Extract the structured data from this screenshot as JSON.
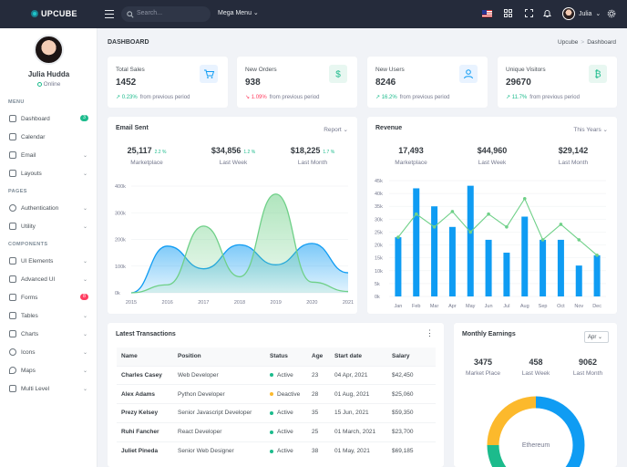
{
  "app": {
    "brand": "UPCUBE"
  },
  "topbar": {
    "search_placeholder": "Search...",
    "mega_menu": "Mega Menu",
    "user_name": "Julia"
  },
  "sidebar": {
    "profile_name": "Julia Hudda",
    "profile_status": "Online",
    "sections": {
      "menu": "MENU",
      "pages": "PAGES",
      "components": "COMPONENTS"
    },
    "items": [
      {
        "label": "Dashboard",
        "badge": "3",
        "badge_color": "#1cbb8c"
      },
      {
        "label": "Calendar"
      },
      {
        "label": "Email"
      },
      {
        "label": "Layouts"
      },
      {
        "label": "Authentication"
      },
      {
        "label": "Utility"
      },
      {
        "label": "UI Elements"
      },
      {
        "label": "Advanced UI"
      },
      {
        "label": "Forms",
        "badge": "8",
        "badge_color": "#ff3d60"
      },
      {
        "label": "Tables"
      },
      {
        "label": "Charts"
      },
      {
        "label": "Icons"
      },
      {
        "label": "Maps"
      },
      {
        "label": "Multi Level"
      }
    ]
  },
  "page": {
    "title": "DASHBOARD",
    "breadcrumb": [
      "Upcube",
      "Dashboard"
    ]
  },
  "stats": [
    {
      "label": "Total Sales",
      "value": "1452",
      "change": "0.23%",
      "direction": "up",
      "note": "from previous period",
      "icon": "cart-icon",
      "color": "#0f9cf3"
    },
    {
      "label": "New Orders",
      "value": "938",
      "change": "1.09%",
      "direction": "down",
      "note": "from previous period",
      "icon": "dollar-icon",
      "color": "#1cbb8c"
    },
    {
      "label": "New Users",
      "value": "8246",
      "change": "16.2%",
      "direction": "up",
      "note": "from previous period",
      "icon": "user-icon",
      "color": "#0f9cf3"
    },
    {
      "label": "Unique Visitors",
      "value": "29670",
      "change": "11.7%",
      "direction": "up",
      "note": "from previous period",
      "icon": "bitcoin-icon",
      "color": "#1cbb8c"
    }
  ],
  "email_sent": {
    "title": "Email Sent",
    "selector": "Report",
    "kpis": [
      {
        "value": "25,117",
        "delta": "2.2 %",
        "label": "Marketplace"
      },
      {
        "value": "$34,856",
        "delta": "1.2 %",
        "label": "Last Week"
      },
      {
        "value": "$18,225",
        "delta": "1.7 %",
        "label": "Last Month"
      }
    ]
  },
  "revenue": {
    "title": "Revenue",
    "selector": "This Years",
    "kpis": [
      {
        "value": "17,493",
        "label": "Marketplace"
      },
      {
        "value": "$44,960",
        "label": "Last Week"
      },
      {
        "value": "$29,142",
        "label": "Last Month"
      }
    ]
  },
  "transactions": {
    "title": "Latest Transactions",
    "columns": [
      "Name",
      "Position",
      "Status",
      "Age",
      "Start date",
      "Salary"
    ],
    "rows": [
      {
        "name": "Charles Casey",
        "position": "Web Developer",
        "status": "Active",
        "status_color": "#1cbb8c",
        "age": "23",
        "start": "04 Apr, 2021",
        "salary": "$42,450"
      },
      {
        "name": "Alex Adams",
        "position": "Python Developer",
        "status": "Deactive",
        "status_color": "#fcb92c",
        "age": "28",
        "start": "01 Aug, 2021",
        "salary": "$25,060"
      },
      {
        "name": "Prezy Kelsey",
        "position": "Senior Javascript Developer",
        "status": "Active",
        "status_color": "#1cbb8c",
        "age": "35",
        "start": "15 Jun, 2021",
        "salary": "$59,350"
      },
      {
        "name": "Ruhi Fancher",
        "position": "React Developer",
        "status": "Active",
        "status_color": "#1cbb8c",
        "age": "25",
        "start": "01 March, 2021",
        "salary": "$23,700"
      },
      {
        "name": "Juliet Pineda",
        "position": "Senior Web Designer",
        "status": "Active",
        "status_color": "#1cbb8c",
        "age": "38",
        "start": "01 May, 2021",
        "salary": "$69,185"
      }
    ]
  },
  "monthly_earnings": {
    "title": "Monthly Earnings",
    "selector": "Apr",
    "kpis": [
      {
        "value": "3475",
        "label": "Market Place"
      },
      {
        "value": "458",
        "label": "Last Week"
      },
      {
        "value": "9062",
        "label": "Last Month"
      }
    ],
    "donut_label": "Ethereum"
  },
  "chart_data": [
    {
      "type": "area",
      "title": "Email Sent",
      "x": [
        "2015",
        "2016",
        "2017",
        "2018",
        "2019",
        "2020",
        "2021"
      ],
      "y_ticks": [
        "0k",
        "100k",
        "200k",
        "300k",
        "400k"
      ],
      "ylim": [
        0,
        400
      ],
      "series": [
        {
          "values": [
            0,
            175,
            90,
            180,
            105,
            185,
            75
          ],
          "color": "#0f9cf3"
        },
        {
          "values": [
            0,
            30,
            250,
            60,
            370,
            40,
            5
          ],
          "color": "#6fd088"
        }
      ]
    },
    {
      "type": "bar",
      "title": "Revenue",
      "categories": [
        "Jan",
        "Feb",
        "Mar",
        "Apr",
        "May",
        "Jun",
        "Jul",
        "Aug",
        "Sep",
        "Oct",
        "Nov",
        "Dec"
      ],
      "y_ticks": [
        "0k",
        "5k",
        "10k",
        "15k",
        "20k",
        "25k",
        "30k",
        "35k",
        "40k",
        "45k"
      ],
      "ylim": [
        0,
        45
      ],
      "series": [
        {
          "type": "bar",
          "values": [
            23,
            42,
            35,
            27,
            43,
            22,
            17,
            31,
            22,
            22,
            12,
            16
          ],
          "color": "#0f9cf3"
        },
        {
          "type": "line",
          "values": [
            23,
            32,
            27,
            33,
            25,
            32,
            27,
            38,
            22,
            28,
            22,
            16
          ],
          "color": "#6fd088"
        }
      ]
    },
    {
      "type": "pie",
      "title": "Monthly Earnings",
      "segments": [
        {
          "name": "Ethereum",
          "value": 50,
          "color": "#0f9cf3"
        },
        {
          "value": 25,
          "color": "#1cbb8c"
        },
        {
          "value": 25,
          "color": "#fcb92c"
        }
      ]
    }
  ]
}
